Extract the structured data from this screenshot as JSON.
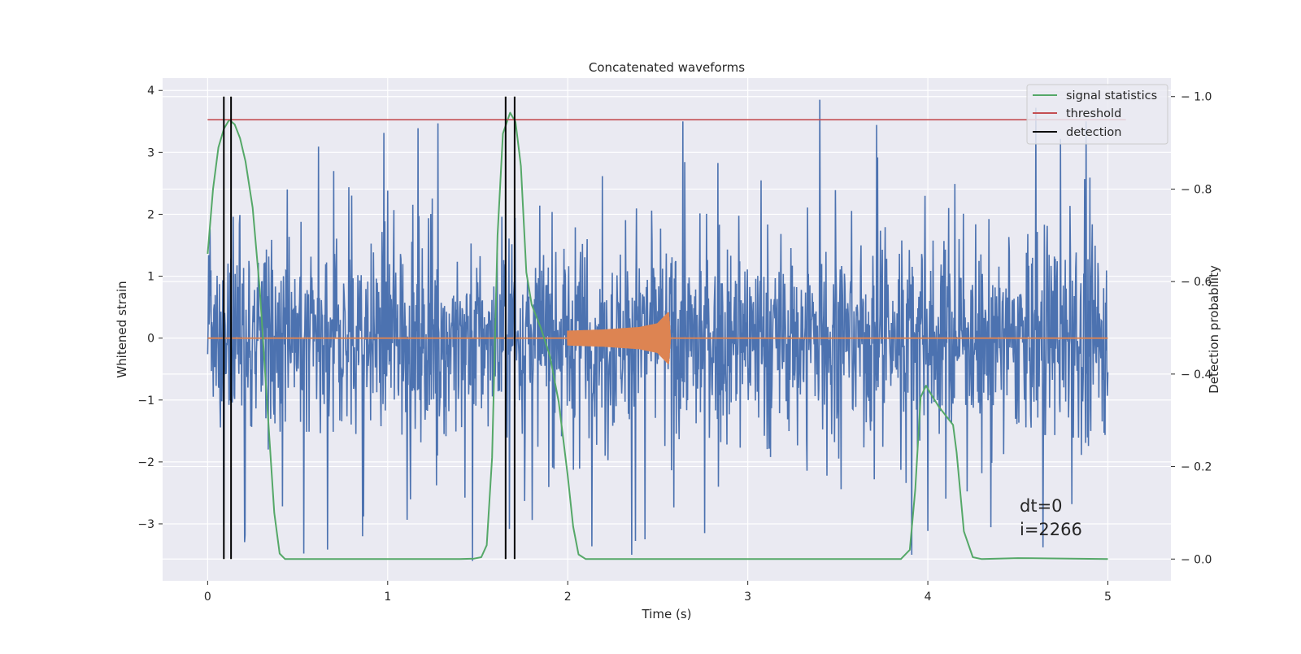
{
  "chart_data": {
    "type": "line",
    "title": "Concatenated waveforms",
    "xlabel": "Time (s)",
    "ylabel": "Whitened strain",
    "y2label": "Detection probability",
    "xlim": [
      -0.25,
      5.35
    ],
    "ylim": [
      -3.92,
      4.2
    ],
    "y2lim": [
      -0.047,
      1.04
    ],
    "xticks": [
      0,
      1,
      2,
      3,
      4,
      5
    ],
    "yticks": [
      -3,
      -2,
      -1,
      0,
      1,
      2,
      3,
      4
    ],
    "y2ticks": [
      0.0,
      0.2,
      0.4,
      0.6,
      0.8,
      1.0
    ],
    "grid": true,
    "legend_position": "top-right",
    "colors": {
      "background": "#EAEAF2",
      "grid": "#FFFFFF",
      "strain": "#4C72B0",
      "template": "#DD8452",
      "signal_statistics": "#55A868",
      "threshold": "#C44E52",
      "detection": "#000000"
    },
    "series": [
      {
        "name": "",
        "role": "whitened strain noise",
        "axis": "left",
        "x_range": [
          0,
          5
        ],
        "typical_amplitude": 1.0,
        "envelope_peak": 3.5,
        "notable_spikes": [
          {
            "x": 1.28,
            "y": 3.47
          },
          {
            "x": 3.4,
            "y": 3.85
          },
          {
            "x": 4.6,
            "y": 3.72
          },
          {
            "x": 0.09,
            "y": -3.05
          },
          {
            "x": 0.86,
            "y": -3.2
          },
          {
            "x": 1.47,
            "y": -3.6
          },
          {
            "x": 2.43,
            "y": -3.25
          },
          {
            "x": 4.64,
            "y": -3.38
          },
          {
            "x": 2.76,
            "y": -3.15
          }
        ]
      },
      {
        "name": "",
        "role": "injected waveform",
        "axis": "left",
        "x": [
          0,
          2.0,
          2.2,
          2.4,
          2.5,
          2.56,
          2.57,
          5.0
        ],
        "amplitude": [
          0,
          0.12,
          0.14,
          0.18,
          0.24,
          0.42,
          0,
          0
        ]
      },
      {
        "name": "signal statistics",
        "axis": "right",
        "x": [
          0.0,
          0.03,
          0.06,
          0.09,
          0.12,
          0.15,
          0.18,
          0.21,
          0.25,
          0.29,
          0.33,
          0.37,
          0.4,
          0.43,
          0.5,
          1.0,
          1.4,
          1.48,
          1.52,
          1.55,
          1.58,
          1.61,
          1.64,
          1.68,
          1.71,
          1.74,
          1.77,
          1.8,
          1.85,
          1.9,
          1.95,
          2.0,
          2.03,
          2.06,
          2.1,
          3.0,
          3.85,
          3.9,
          3.93,
          3.96,
          3.99,
          4.02,
          4.06,
          4.1,
          4.14,
          4.16,
          4.2,
          4.25,
          4.3,
          4.5,
          5.0
        ],
        "values": [
          0.66,
          0.8,
          0.89,
          0.93,
          0.95,
          0.94,
          0.91,
          0.86,
          0.76,
          0.58,
          0.34,
          0.1,
          0.012,
          0.0,
          0.0,
          0.0,
          0.0,
          0.001,
          0.004,
          0.03,
          0.22,
          0.7,
          0.92,
          0.965,
          0.945,
          0.85,
          0.62,
          0.55,
          0.5,
          0.44,
          0.34,
          0.18,
          0.07,
          0.01,
          0.0,
          0.0,
          0.0,
          0.02,
          0.15,
          0.35,
          0.375,
          0.355,
          0.33,
          0.31,
          0.29,
          0.23,
          0.06,
          0.004,
          0.0,
          0.002,
          0.0
        ]
      },
      {
        "name": "threshold",
        "axis": "right",
        "x": [
          0,
          5.1
        ],
        "values": [
          0.95,
          0.95
        ]
      },
      {
        "name": "detection",
        "axis": "right",
        "x": [
          0.09,
          0.13,
          1.655,
          1.705
        ],
        "values": [
          1.0,
          1.0,
          1.0,
          1.0
        ]
      }
    ],
    "annotations": [
      {
        "text": "dt=0",
        "x": 4.5,
        "y": -2.75
      },
      {
        "text": "i=2266",
        "x": 4.5,
        "y": -3.1
      }
    ]
  }
}
